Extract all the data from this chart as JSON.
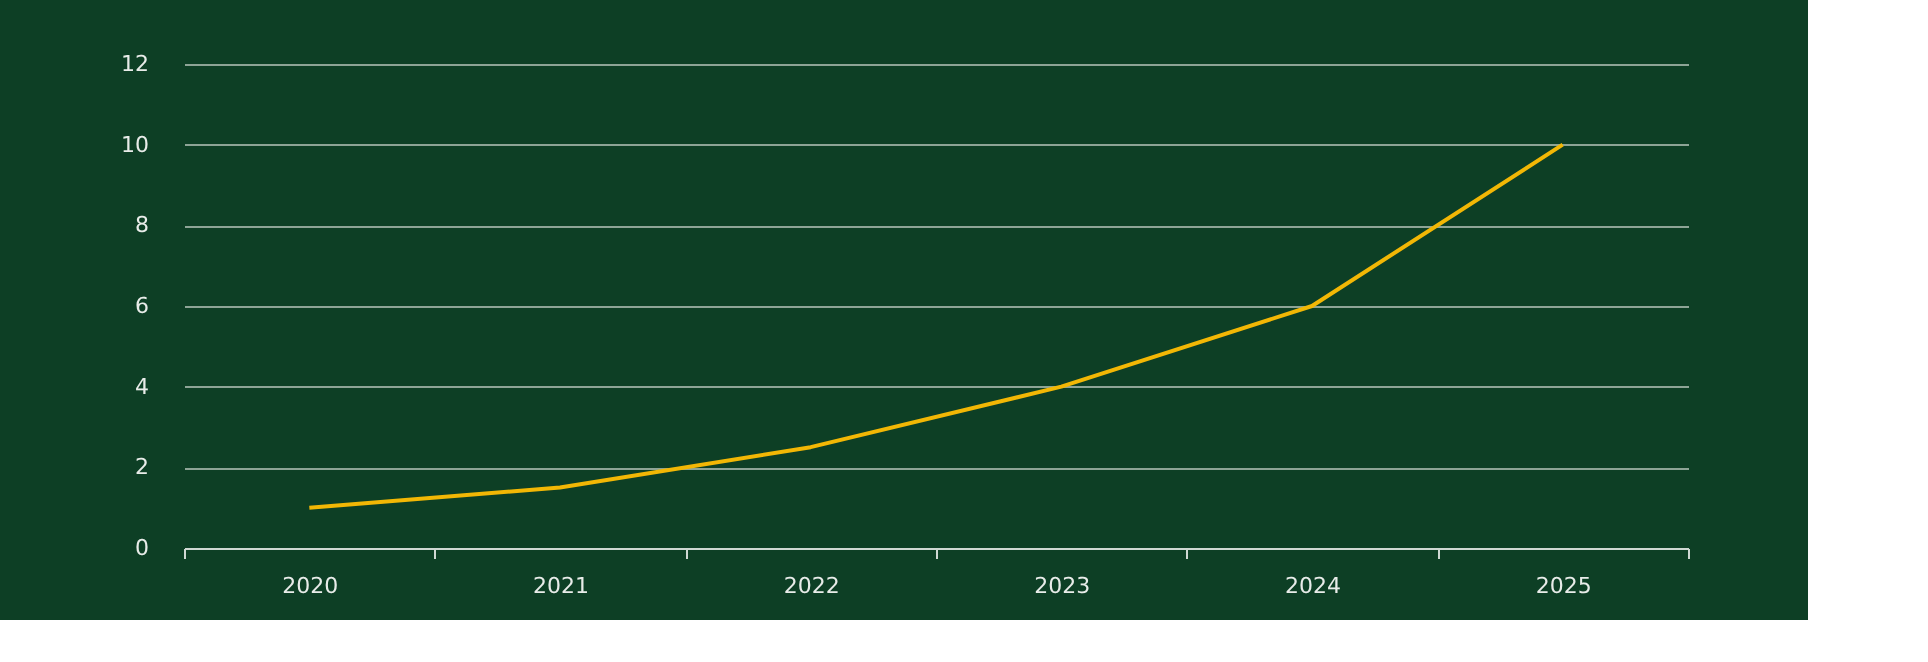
{
  "chart_data": {
    "type": "line",
    "categories": [
      "2020",
      "2021",
      "2022",
      "2023",
      "2024",
      "2025"
    ],
    "series": [
      {
        "color": "#f2b705",
        "values": [
          1,
          1.5,
          2.5,
          4,
          6,
          10
        ]
      }
    ],
    "ylim": [
      0,
      12
    ],
    "yticks": [
      0,
      2,
      4,
      6,
      8,
      10,
      12
    ],
    "grid": "y",
    "marker": "none",
    "line_style": "solid"
  }
}
